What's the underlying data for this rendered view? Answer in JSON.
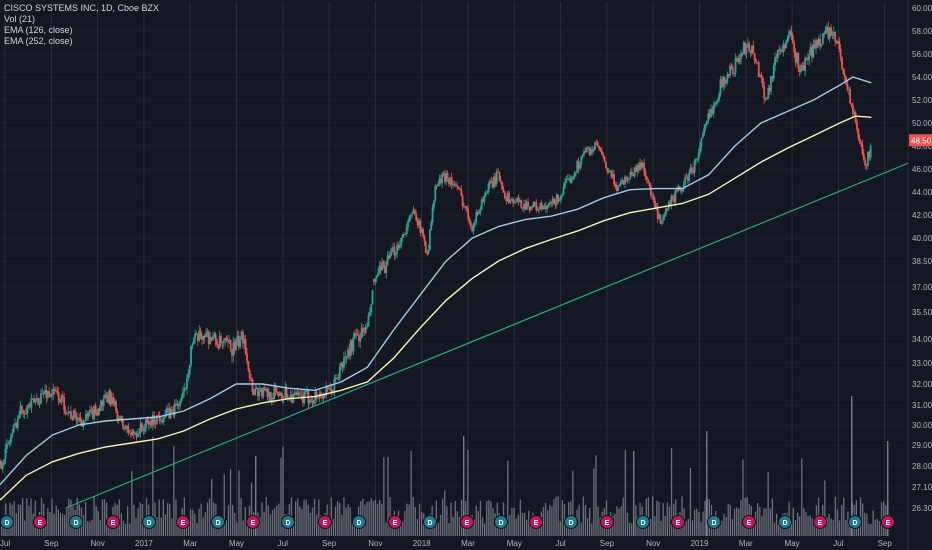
{
  "legend": {
    "symbol_line": "CISCO SYSTEMS INC, 1D, Cboe BZX",
    "volume": "Vol (21)",
    "ema_fast": "EMA (126, close)",
    "ema_slow": "EMA (252, close)"
  },
  "colors": {
    "background": "#131722",
    "grid": "#2a2e39",
    "up": "#26a69a",
    "down": "#ef5350",
    "volume": "#8a8d95",
    "ema_fast": "#9ccbe8",
    "ema_slow": "#fbf2b4",
    "trendline": "#26a69a",
    "last_price_bg": "#ef5350",
    "marker_dividend": "#1e7a8c",
    "marker_earnings": "#c2185b"
  },
  "chart_data": {
    "type": "candlestick",
    "y_axis": {
      "ticks": [
        "60.00",
        "58.00",
        "56.00",
        "54.00",
        "52.00",
        "50.00",
        "48.00",
        "46.00",
        "44.00",
        "42.00",
        "40.00",
        "38.50",
        "37.00",
        "35.50",
        "34.00",
        "33.00",
        "32.00",
        "31.00",
        "30.00",
        "29.00",
        "28.00",
        "27.10",
        "26.30"
      ],
      "scale": "log",
      "ylim": [
        26.3,
        60.0
      ],
      "last_price": "48.50"
    },
    "x_axis": {
      "ticks": [
        "Jul",
        "Sep",
        "Nov",
        "2017",
        "Mar",
        "May",
        "Jul",
        "Sep",
        "Nov",
        "2018",
        "Mar",
        "May",
        "Jul",
        "Sep",
        "Nov",
        "2019",
        "Mar",
        "May",
        "Jul",
        "Sep"
      ]
    },
    "price_path": [
      {
        "t": 0,
        "p": 28.0
      },
      {
        "t": 0.3,
        "p": 29.0
      },
      {
        "t": 0.8,
        "p": 30.8
      },
      {
        "t": 1.2,
        "p": 31.0
      },
      {
        "t": 1.7,
        "p": 31.6
      },
      {
        "t": 2.2,
        "p": 31.5
      },
      {
        "t": 2.7,
        "p": 30.5
      },
      {
        "t": 3.2,
        "p": 30.2
      },
      {
        "t": 3.7,
        "p": 30.8
      },
      {
        "t": 4.2,
        "p": 31.4
      },
      {
        "t": 4.6,
        "p": 30.1
      },
      {
        "t": 5.0,
        "p": 29.5
      },
      {
        "t": 5.6,
        "p": 30.0
      },
      {
        "t": 6.0,
        "p": 30.4
      },
      {
        "t": 6.5,
        "p": 30.6
      },
      {
        "t": 7.0,
        "p": 31.4
      },
      {
        "t": 7.3,
        "p": 33.8
      },
      {
        "t": 7.8,
        "p": 34.3
      },
      {
        "t": 8.4,
        "p": 33.8
      },
      {
        "t": 8.9,
        "p": 33.6
      },
      {
        "t": 9.3,
        "p": 34.2
      },
      {
        "t": 9.6,
        "p": 31.8
      },
      {
        "t": 10.2,
        "p": 31.5
      },
      {
        "t": 10.8,
        "p": 31.6
      },
      {
        "t": 11.4,
        "p": 31.3
      },
      {
        "t": 12.0,
        "p": 31.4
      },
      {
        "t": 12.6,
        "p": 31.6
      },
      {
        "t": 13.0,
        "p": 32.8
      },
      {
        "t": 13.5,
        "p": 34.0
      },
      {
        "t": 14.0,
        "p": 34.6
      },
      {
        "t": 14.3,
        "p": 37.5
      },
      {
        "t": 14.8,
        "p": 38.5
      },
      {
        "t": 15.3,
        "p": 40.0
      },
      {
        "t": 15.8,
        "p": 42.5
      },
      {
        "t": 16.0,
        "p": 40.8
      },
      {
        "t": 16.3,
        "p": 39.0
      },
      {
        "t": 16.6,
        "p": 44.5
      },
      {
        "t": 17.0,
        "p": 45.5
      },
      {
        "t": 17.5,
        "p": 44.0
      },
      {
        "t": 18.0,
        "p": 41.0
      },
      {
        "t": 18.5,
        "p": 44.0
      },
      {
        "t": 19.0,
        "p": 45.5
      },
      {
        "t": 19.3,
        "p": 43.5
      },
      {
        "t": 19.8,
        "p": 43.0
      },
      {
        "t": 20.3,
        "p": 42.8
      },
      {
        "t": 20.8,
        "p": 42.5
      },
      {
        "t": 21.3,
        "p": 43.5
      },
      {
        "t": 21.8,
        "p": 45.5
      },
      {
        "t": 22.3,
        "p": 47.5
      },
      {
        "t": 22.8,
        "p": 48.0
      },
      {
        "t": 23.0,
        "p": 46.5
      },
      {
        "t": 23.5,
        "p": 44.5
      },
      {
        "t": 24.0,
        "p": 45.5
      },
      {
        "t": 24.5,
        "p": 46.5
      },
      {
        "t": 24.8,
        "p": 43.8
      },
      {
        "t": 25.2,
        "p": 41.0
      },
      {
        "t": 25.5,
        "p": 43.0
      },
      {
        "t": 26.0,
        "p": 44.5
      },
      {
        "t": 26.5,
        "p": 46.5
      },
      {
        "t": 27.0,
        "p": 50.5
      },
      {
        "t": 27.5,
        "p": 53.5
      },
      {
        "t": 28.0,
        "p": 55.0
      },
      {
        "t": 28.5,
        "p": 57.0
      },
      {
        "t": 28.8,
        "p": 55.5
      },
      {
        "t": 29.2,
        "p": 52.0
      },
      {
        "t": 29.6,
        "p": 56.0
      },
      {
        "t": 30.1,
        "p": 57.5
      },
      {
        "t": 30.5,
        "p": 54.5
      },
      {
        "t": 31.0,
        "p": 56.5
      },
      {
        "t": 31.5,
        "p": 58.0
      },
      {
        "t": 31.9,
        "p": 57.0
      },
      {
        "t": 32.2,
        "p": 54.0
      },
      {
        "t": 32.5,
        "p": 51.0
      },
      {
        "t": 32.7,
        "p": 48.8
      },
      {
        "t": 33.0,
        "p": 46.5
      },
      {
        "t": 33.2,
        "p": 48.0
      }
    ],
    "ema_126": [
      {
        "t": 0,
        "p": 27.2
      },
      {
        "t": 1,
        "p": 28.5
      },
      {
        "t": 2,
        "p": 29.5
      },
      {
        "t": 3,
        "p": 30.0
      },
      {
        "t": 4,
        "p": 30.2
      },
      {
        "t": 5,
        "p": 30.3
      },
      {
        "t": 6,
        "p": 30.4
      },
      {
        "t": 7,
        "p": 30.7
      },
      {
        "t": 8,
        "p": 31.3
      },
      {
        "t": 9,
        "p": 32.0
      },
      {
        "t": 10,
        "p": 32.0
      },
      {
        "t": 11,
        "p": 31.8
      },
      {
        "t": 12,
        "p": 31.7
      },
      {
        "t": 13,
        "p": 32.1
      },
      {
        "t": 14,
        "p": 32.8
      },
      {
        "t": 15,
        "p": 34.5
      },
      {
        "t": 16,
        "p": 36.5
      },
      {
        "t": 17,
        "p": 38.5
      },
      {
        "t": 18,
        "p": 40.0
      },
      {
        "t": 19,
        "p": 41.0
      },
      {
        "t": 20,
        "p": 41.6
      },
      {
        "t": 21,
        "p": 41.9
      },
      {
        "t": 22,
        "p": 42.5
      },
      {
        "t": 23,
        "p": 43.5
      },
      {
        "t": 24,
        "p": 44.2
      },
      {
        "t": 25,
        "p": 44.3
      },
      {
        "t": 26,
        "p": 44.3
      },
      {
        "t": 27,
        "p": 45.5
      },
      {
        "t": 28,
        "p": 48.0
      },
      {
        "t": 29,
        "p": 50.0
      },
      {
        "t": 30,
        "p": 51.0
      },
      {
        "t": 31,
        "p": 52.0
      },
      {
        "t": 32,
        "p": 53.3
      },
      {
        "t": 32.5,
        "p": 54.0
      },
      {
        "t": 33.2,
        "p": 53.5
      }
    ],
    "ema_252": [
      {
        "t": 0,
        "p": 26.6
      },
      {
        "t": 1,
        "p": 27.6
      },
      {
        "t": 2,
        "p": 28.2
      },
      {
        "t": 3,
        "p": 28.6
      },
      {
        "t": 4,
        "p": 28.9
      },
      {
        "t": 5,
        "p": 29.1
      },
      {
        "t": 6,
        "p": 29.3
      },
      {
        "t": 7,
        "p": 29.7
      },
      {
        "t": 8,
        "p": 30.3
      },
      {
        "t": 9,
        "p": 30.8
      },
      {
        "t": 10,
        "p": 31.1
      },
      {
        "t": 11,
        "p": 31.3
      },
      {
        "t": 12,
        "p": 31.4
      },
      {
        "t": 13,
        "p": 31.7
      },
      {
        "t": 14,
        "p": 32.1
      },
      {
        "t": 15,
        "p": 33.2
      },
      {
        "t": 16,
        "p": 34.6
      },
      {
        "t": 17,
        "p": 36.2
      },
      {
        "t": 18,
        "p": 37.5
      },
      {
        "t": 19,
        "p": 38.5
      },
      {
        "t": 20,
        "p": 39.3
      },
      {
        "t": 21,
        "p": 39.9
      },
      {
        "t": 22,
        "p": 40.6
      },
      {
        "t": 23,
        "p": 41.5
      },
      {
        "t": 24,
        "p": 42.2
      },
      {
        "t": 25,
        "p": 42.6
      },
      {
        "t": 26,
        "p": 43.0
      },
      {
        "t": 27,
        "p": 43.8
      },
      {
        "t": 28,
        "p": 45.2
      },
      {
        "t": 29,
        "p": 46.6
      },
      {
        "t": 30,
        "p": 47.8
      },
      {
        "t": 31,
        "p": 48.9
      },
      {
        "t": 32,
        "p": 50.0
      },
      {
        "t": 32.6,
        "p": 50.6
      },
      {
        "t": 33.2,
        "p": 50.5
      }
    ],
    "trendline": {
      "from": {
        "t": 2.5,
        "p": 26.3
      },
      "to": {
        "t": 34.0,
        "p": 46.5
      }
    },
    "gaps": [
      {
        "t": 9.6
      },
      {
        "t": 14.2
      }
    ],
    "events": [
      "D",
      "E",
      "D",
      "E",
      "D",
      "E",
      "D",
      "E",
      "D",
      "E",
      "D",
      "E",
      "D",
      "E",
      "D",
      "E",
      "D",
      "E",
      "D",
      "E",
      "D",
      "E",
      "D",
      "E",
      "D",
      "E"
    ]
  }
}
